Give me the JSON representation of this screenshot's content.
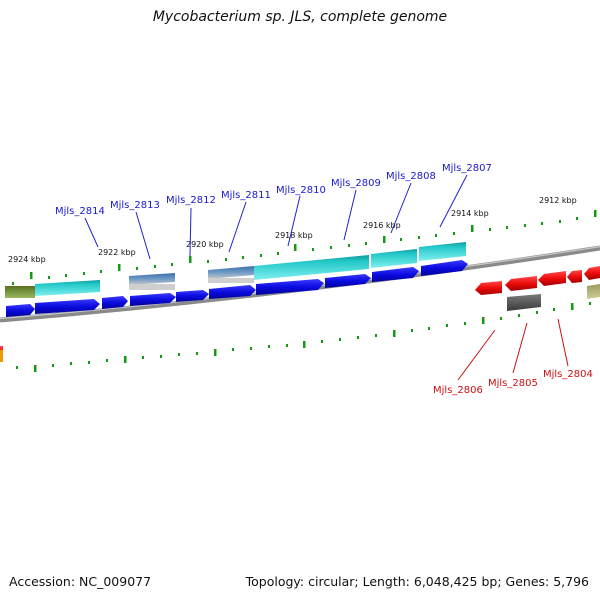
{
  "title": "Mycobacterium sp. JLS, complete genome",
  "footer": {
    "accession": "Accession: NC_009077",
    "topology": "Topology: circular; Length: 6,048,425 bp; Genes: 5,796"
  },
  "colors": {
    "forward_gene": "#1a1aee",
    "reverse_gene": "#ee1111",
    "teal_feature": "#22c7c7",
    "olive_feature": "#6b8a2c",
    "steel_feature": "#4a82b8",
    "gray_feature": "#555555",
    "orange_feature": "#ee9900",
    "tick": "#139a13",
    "backbone": "#777777",
    "label_forward": "#1a1acc",
    "label_reverse": "#cc1111"
  },
  "ticks": [
    {
      "label": "2924 kbp"
    },
    {
      "label": "2922 kbp"
    },
    {
      "label": "2920 kbp"
    },
    {
      "label": "2918 kbp"
    },
    {
      "label": "2916 kbp"
    },
    {
      "label": "2914 kbp"
    },
    {
      "label": "2912 kbp"
    }
  ],
  "forward_labels": [
    "Mjls_2814",
    "Mjls_2813",
    "Mjls_2812",
    "Mjls_2811",
    "Mjls_2810",
    "Mjls_2809",
    "Mjls_2808",
    "Mjls_2807"
  ],
  "reverse_labels": [
    "Mjls_2806",
    "Mjls_2805",
    "Mjls_2804"
  ]
}
